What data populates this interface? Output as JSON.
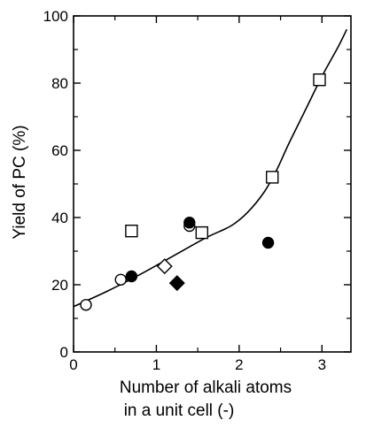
{
  "chart_data": {
    "type": "scatter",
    "title": "",
    "xlabel_lines": [
      "Number of alkali atoms",
      "in a unit cell (-)"
    ],
    "ylabel": "Yield of PC (%)",
    "xlim": [
      0,
      3.35
    ],
    "ylim": [
      0,
      100
    ],
    "xticks": [
      0,
      1,
      2,
      3
    ],
    "xtick_labels": [
      "0",
      "1",
      "2",
      "3"
    ],
    "yticks": [
      0,
      20,
      40,
      60,
      80,
      100
    ],
    "ytick_labels": [
      "0",
      "20",
      "40",
      "60",
      "80",
      "100"
    ],
    "grid": false,
    "series": [
      {
        "marker": "open-square",
        "points": [
          [
            0.7,
            36
          ],
          [
            1.55,
            35.5
          ],
          [
            2.4,
            52
          ],
          [
            2.97,
            81
          ]
        ]
      },
      {
        "marker": "open-circle",
        "points": [
          [
            0.15,
            14
          ],
          [
            0.57,
            21.5
          ],
          [
            1.4,
            37.5
          ]
        ]
      },
      {
        "marker": "filled-circle",
        "points": [
          [
            0.7,
            22.5
          ],
          [
            1.4,
            38.5
          ],
          [
            2.35,
            32.5
          ]
        ]
      },
      {
        "marker": "open-diamond",
        "points": [
          [
            1.1,
            25.5
          ]
        ]
      },
      {
        "marker": "filled-diamond",
        "points": [
          [
            1.25,
            20.5
          ]
        ]
      }
    ],
    "fit_curve": [
      [
        0.0,
        13.5
      ],
      [
        0.4,
        18
      ],
      [
        0.8,
        23
      ],
      [
        1.2,
        28.5
      ],
      [
        1.6,
        34
      ],
      [
        1.9,
        37.5
      ],
      [
        2.1,
        41.5
      ],
      [
        2.3,
        47.5
      ],
      [
        2.45,
        54
      ],
      [
        2.6,
        62
      ],
      [
        2.8,
        72
      ],
      [
        3.0,
        82
      ],
      [
        3.2,
        91
      ],
      [
        3.3,
        96
      ]
    ]
  }
}
